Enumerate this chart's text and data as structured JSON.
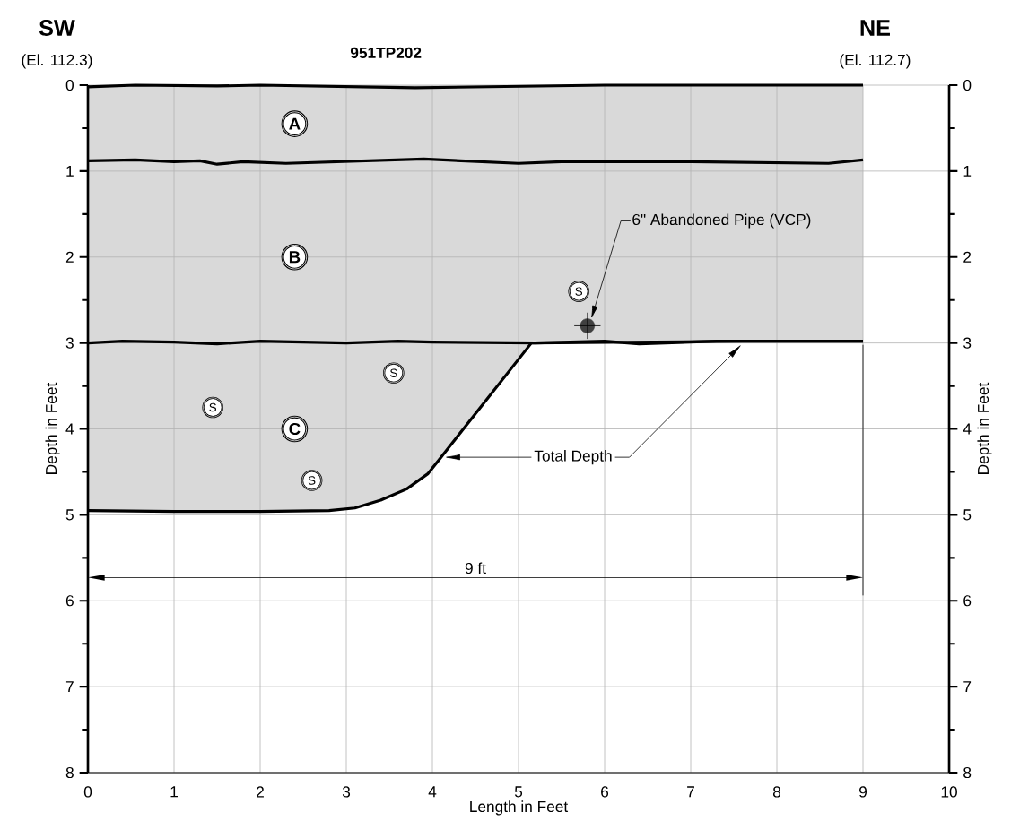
{
  "chart_data": {
    "type": "area",
    "title": "951TP202",
    "xlabel": "Length in Feet",
    "ylabel": "Depth in Feet",
    "y2label": "Depth in Feet",
    "xlim": [
      0,
      10
    ],
    "xticks": [
      0,
      1,
      2,
      3,
      4,
      5,
      6,
      7,
      8,
      9,
      10
    ],
    "ylim": [
      8,
      0
    ],
    "yticks": [
      0,
      {
        "value": 0.5,
        "label": null
      },
      1,
      {
        "value": 1.5,
        "label": null
      },
      2,
      {
        "value": 2.5,
        "label": null
      },
      3,
      {
        "value": 3.5,
        "label": null
      },
      4,
      {
        "value": 4.5,
        "label": null
      },
      5,
      {
        "value": 5.5,
        "label": null
      },
      6,
      {
        "value": 6.5,
        "label": null
      },
      7,
      {
        "value": 7.5,
        "label": null
      },
      8
    ],
    "y2lim": [
      8,
      0
    ],
    "y2ticks": [
      0,
      {
        "value": 0.5,
        "label": null
      },
      1,
      {
        "value": 1.5,
        "label": null
      },
      2,
      {
        "value": 2.5,
        "label": null
      },
      3,
      {
        "value": 3.5,
        "label": null
      },
      4,
      {
        "value": 4.5,
        "label": null
      },
      5,
      {
        "value": 5.5,
        "label": null
      },
      6,
      {
        "value": 6.5,
        "label": null
      },
      7,
      {
        "value": 7.5,
        "label": null
      },
      8
    ],
    "grid": true,
    "series": [
      {
        "type": "line",
        "color": "#000000",
        "x": [
          0,
          0.55,
          1.5,
          2,
          3.8,
          6,
          9
        ],
        "values": [
          0.02,
          0,
          0.01,
          0,
          0.03,
          0,
          0
        ]
      },
      {
        "type": "line",
        "color": "#000000",
        "x": [
          0,
          0.55,
          1,
          1.3,
          1.5,
          1.8,
          2.3,
          3.9,
          5,
          5.5,
          7,
          8.6,
          9
        ],
        "values": [
          0.88,
          0.87,
          0.89,
          0.88,
          0.92,
          0.89,
          0.91,
          0.86,
          0.91,
          0.89,
          0.89,
          0.91,
          0.87
        ]
      },
      {
        "type": "line",
        "color": "#000000",
        "x": [
          0,
          0.4,
          1,
          1.5,
          2,
          3,
          3.6,
          4,
          5.2,
          6,
          6.4,
          7.3,
          9
        ],
        "values": [
          3,
          2.98,
          2.99,
          3.01,
          2.98,
          3,
          2.98,
          2.99,
          3,
          2.98,
          3.01,
          2.98,
          2.98
        ]
      },
      {
        "type": "scatter",
        "color": "#404040",
        "x": [
          5.8
        ],
        "values": [
          2.8
        ]
      },
      {
        "color": "#d9d9d9",
        "x": [
          0,
          1,
          2,
          2.8,
          3.1,
          3.4,
          3.7,
          3.95,
          4.1,
          5.15,
          7.6,
          9
        ],
        "values": [
          4.95,
          4.96,
          4.96,
          4.95,
          4.92,
          4.83,
          4.7,
          4.52,
          4.33,
          3,
          2.98,
          2.98
        ]
      }
    ],
    "annotations": [
      "SW",
      "(El. 112.3)",
      "NE",
      "(El. 112.7)",
      {
        "text": "A",
        "x": 2.4,
        "y": 0.45
      },
      {
        "text": "B",
        "x": 2.4,
        "y": 2.0
      },
      {
        "text": "C",
        "x": 2.4,
        "y": 4.0
      },
      {
        "text": "S",
        "x": 5.7,
        "y": 2.4
      },
      {
        "text": "S",
        "x": 3.55,
        "y": 3.35
      },
      {
        "text": "S",
        "x": 1.45,
        "y": 3.75
      },
      {
        "text": "S",
        "x": 2.6,
        "y": 4.6
      },
      "6\" Abandoned Pipe (VCP)",
      "Total Depth",
      "9 ft"
    ]
  }
}
